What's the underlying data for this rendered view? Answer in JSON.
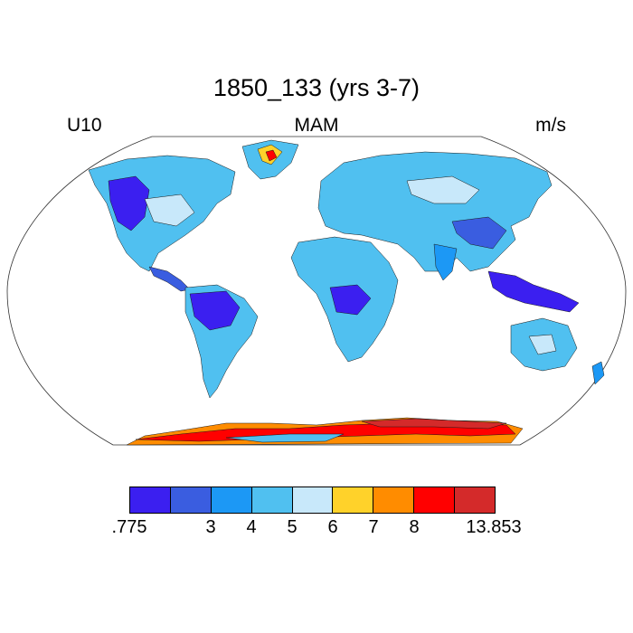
{
  "header": {
    "title": "1850_133 (yrs 3-7)",
    "left_label": "U10",
    "center_label": "MAM",
    "right_label": "m/s"
  },
  "colorbar": {
    "colors": [
      "#3b1ff0",
      "#3a5de0",
      "#1c98f5",
      "#50c0f0",
      "#c8e8fa",
      "#ffd22a",
      "#ff8c00",
      "#ff0000",
      "#d42a2a"
    ],
    "labels": [
      ".775",
      "3",
      "4",
      "5",
      "6",
      "7",
      "8",
      "13.853"
    ]
  },
  "map": {
    "projection": "Robinson",
    "variable": "U10",
    "season": "MAM",
    "units": "m/s"
  }
}
